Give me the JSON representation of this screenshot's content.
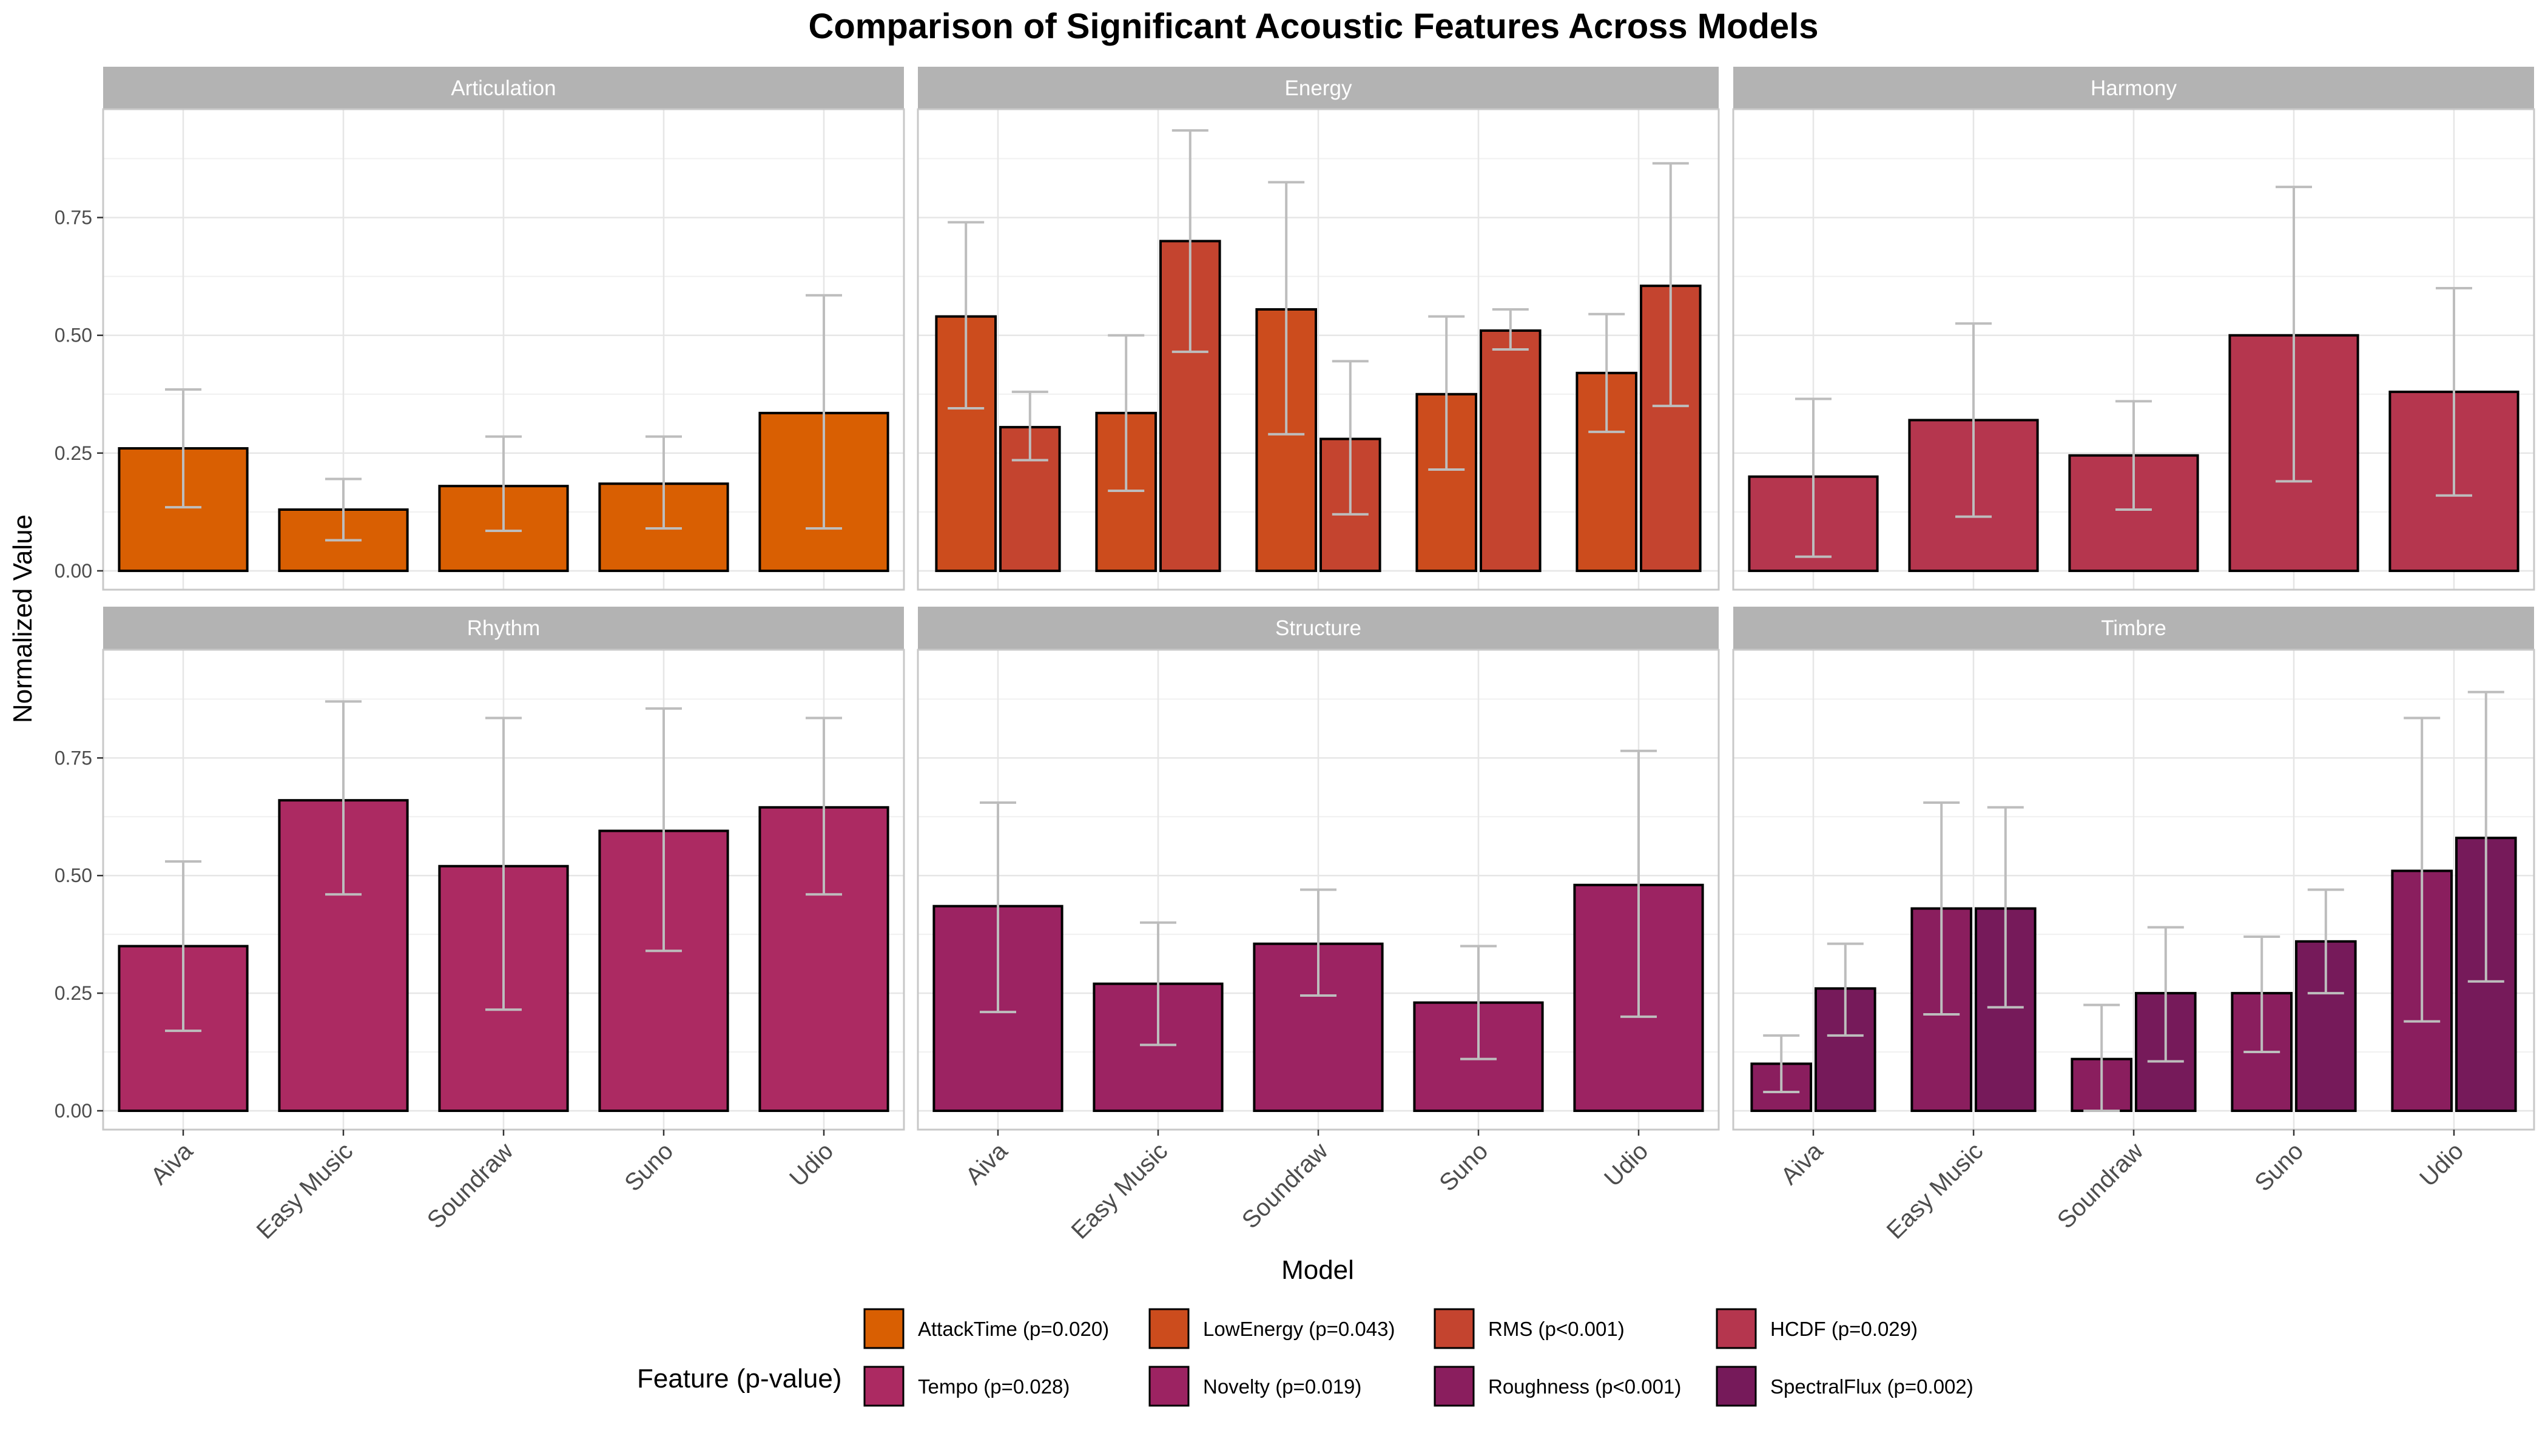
{
  "chart_data": {
    "type": "bar",
    "title": "Comparison of Significant Acoustic Features Across Models",
    "xlabel": "Model",
    "ylabel": "Normalized Value",
    "ylim": [
      -0.04,
      0.98
    ],
    "yticks": [
      "0.00",
      "0.25",
      "0.50",
      "0.75"
    ],
    "grid": true,
    "categories": [
      "Aiva",
      "Easy Music",
      "Soundraw",
      "Suno",
      "Udio"
    ],
    "legend": {
      "title": "Feature (p-value)",
      "position": "bottom",
      "entries": [
        {
          "feature": "AttackTime",
          "label": "AttackTime (p=0.020)",
          "color": "#D95F02"
        },
        {
          "feature": "LowEnergy",
          "label": "LowEnergy (p=0.043)",
          "color": "#CC4C1D"
        },
        {
          "feature": "RMS",
          "label": "RMS (p<0.001)",
          "color": "#C4442F"
        },
        {
          "feature": "HCDF",
          "label": "HCDF (p=0.029)",
          "color": "#B5364E"
        },
        {
          "feature": "Tempo",
          "label": "Tempo (p=0.028)",
          "color": "#AC2A62"
        },
        {
          "feature": "Novelty",
          "label": "Novelty (p=0.019)",
          "color": "#9C2362"
        },
        {
          "feature": "Roughness",
          "label": "Roughness (p<0.001)",
          "color": "#8A1E5E"
        },
        {
          "feature": "SpectralFlux",
          "label": "SpectralFlux (p=0.002)",
          "color": "#761A5A"
        }
      ]
    },
    "panels": [
      {
        "name": "Articulation",
        "series": [
          {
            "feature": "AttackTime",
            "values": [
              0.26,
              0.13,
              0.18,
              0.185,
              0.335
            ],
            "low": [
              0.135,
              0.065,
              0.085,
              0.09,
              0.09
            ],
            "high": [
              0.385,
              0.195,
              0.285,
              0.285,
              0.585
            ]
          }
        ]
      },
      {
        "name": "Energy",
        "series": [
          {
            "feature": "LowEnergy",
            "values": [
              0.54,
              0.335,
              0.555,
              0.375,
              0.42
            ],
            "low": [
              0.345,
              0.17,
              0.29,
              0.215,
              0.295
            ],
            "high": [
              0.74,
              0.5,
              0.825,
              0.54,
              0.545
            ]
          },
          {
            "feature": "RMS",
            "values": [
              0.305,
              0.7,
              0.28,
              0.51,
              0.605
            ],
            "low": [
              0.235,
              0.465,
              0.12,
              0.47,
              0.35
            ],
            "high": [
              0.38,
              0.935,
              0.445,
              0.555,
              0.865
            ]
          }
        ]
      },
      {
        "name": "Harmony",
        "series": [
          {
            "feature": "HCDF",
            "values": [
              0.2,
              0.32,
              0.245,
              0.5,
              0.38
            ],
            "low": [
              0.03,
              0.115,
              0.13,
              0.19,
              0.16
            ],
            "high": [
              0.365,
              0.525,
              0.36,
              0.815,
              0.6
            ]
          }
        ]
      },
      {
        "name": "Rhythm",
        "series": [
          {
            "feature": "Tempo",
            "values": [
              0.35,
              0.66,
              0.52,
              0.595,
              0.645
            ],
            "low": [
              0.17,
              0.46,
              0.215,
              0.34,
              0.46
            ],
            "high": [
              0.53,
              0.87,
              0.835,
              0.855,
              0.835
            ]
          }
        ]
      },
      {
        "name": "Structure",
        "series": [
          {
            "feature": "Novelty",
            "values": [
              0.435,
              0.27,
              0.355,
              0.23,
              0.48
            ],
            "low": [
              0.21,
              0.14,
              0.245,
              0.11,
              0.2
            ],
            "high": [
              0.655,
              0.4,
              0.47,
              0.35,
              0.765
            ]
          }
        ]
      },
      {
        "name": "Timbre",
        "series": [
          {
            "feature": "Roughness",
            "values": [
              0.1,
              0.43,
              0.11,
              0.25,
              0.51
            ],
            "low": [
              0.04,
              0.205,
              0.0,
              0.125,
              0.19
            ],
            "high": [
              0.16,
              0.655,
              0.225,
              0.37,
              0.835
            ]
          },
          {
            "feature": "SpectralFlux",
            "values": [
              0.26,
              0.43,
              0.25,
              0.36,
              0.58
            ],
            "low": [
              0.16,
              0.22,
              0.105,
              0.25,
              0.275
            ],
            "high": [
              0.355,
              0.645,
              0.39,
              0.47,
              0.89
            ]
          }
        ]
      }
    ]
  }
}
